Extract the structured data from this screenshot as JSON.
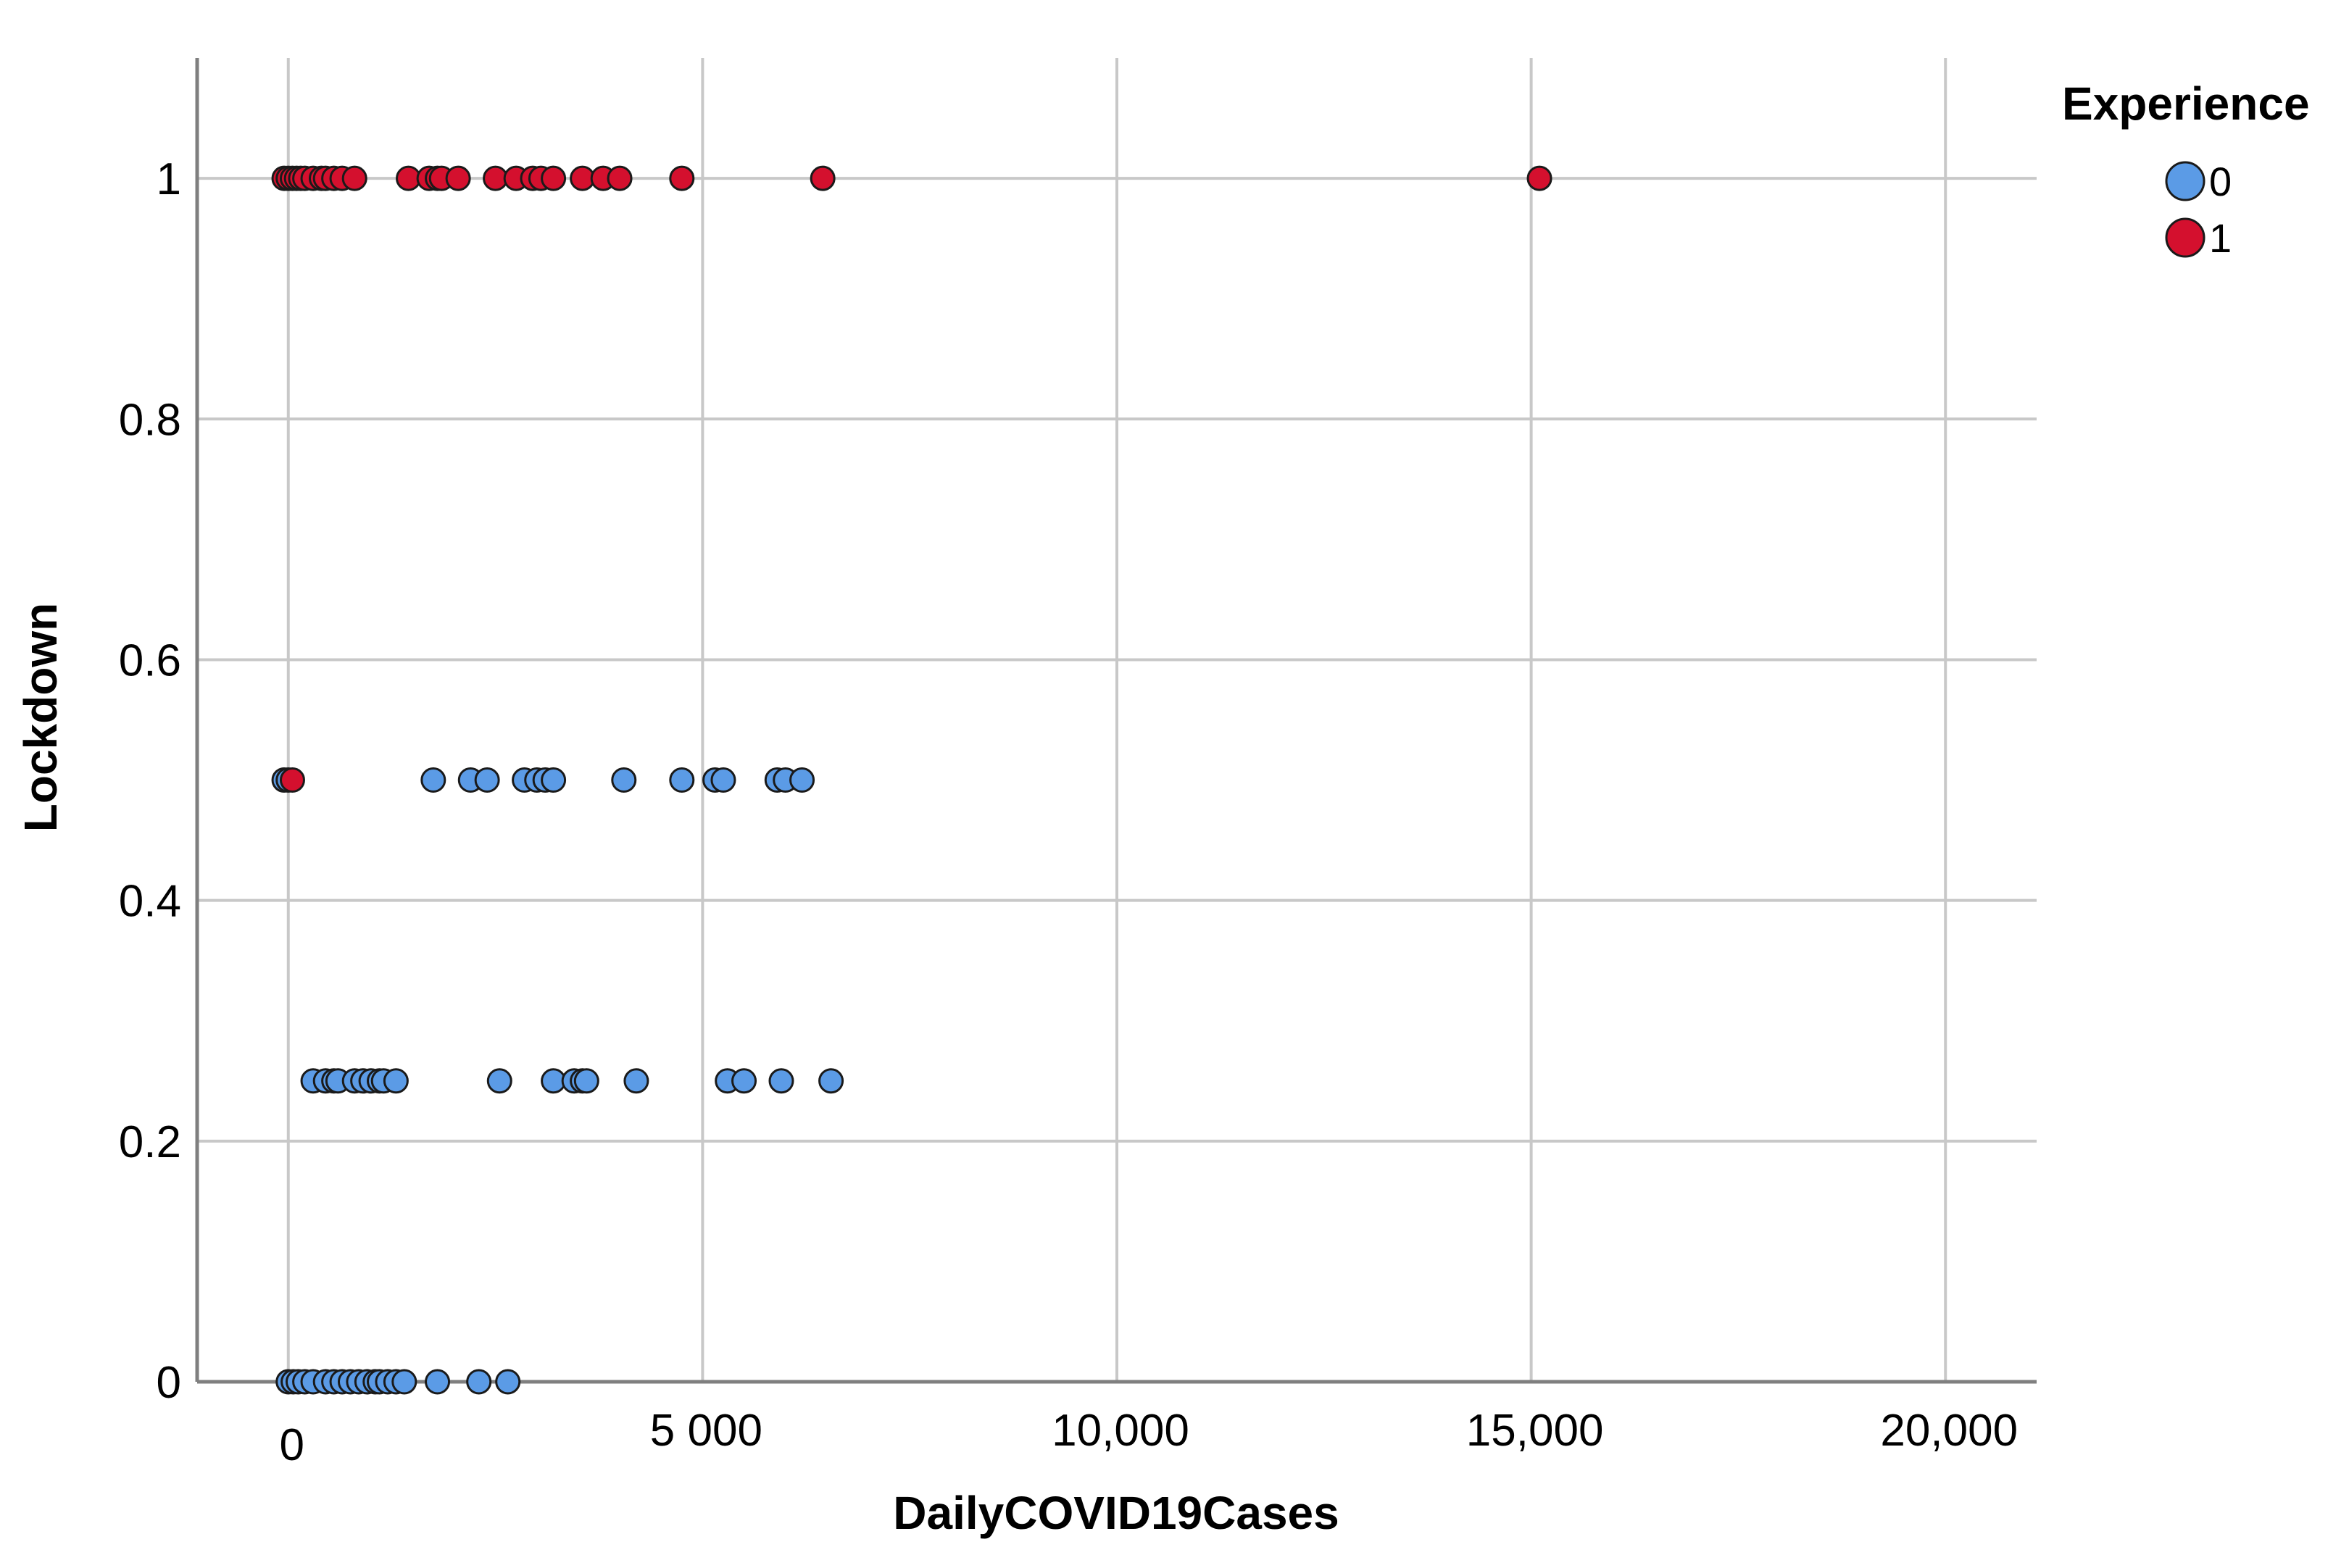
{
  "chart_data": {
    "type": "scatter",
    "title": "",
    "xlabel": "DailyCOVID19Cases",
    "ylabel": "Lockdown",
    "xlim": [
      -1100,
      21100
    ],
    "ylim": [
      0,
      1.1
    ],
    "x_ticks": [
      {
        "value": 0,
        "label": "0"
      },
      {
        "value": 5000,
        "label": "5 000"
      },
      {
        "value": 10000,
        "label": "10,000"
      },
      {
        "value": 15000,
        "label": "15,000"
      },
      {
        "value": 20000,
        "label": "20,000"
      }
    ],
    "y_ticks": [
      {
        "value": 0,
        "label": "0"
      },
      {
        "value": 0.2,
        "label": "0.2"
      },
      {
        "value": 0.4,
        "label": "0.4"
      },
      {
        "value": 0.6,
        "label": "0.6"
      },
      {
        "value": 0.8,
        "label": "0.8"
      },
      {
        "value": 1,
        "label": "1"
      }
    ],
    "grid": true,
    "legend": {
      "title": "Experience",
      "position": "top-right"
    },
    "series": [
      {
        "name": "0",
        "color": "#5b9be6",
        "points": [
          [
            0,
            0
          ],
          [
            60,
            0
          ],
          [
            120,
            0
          ],
          [
            200,
            0
          ],
          [
            300,
            0
          ],
          [
            450,
            0
          ],
          [
            550,
            0
          ],
          [
            650,
            0
          ],
          [
            750,
            0
          ],
          [
            850,
            0
          ],
          [
            950,
            0
          ],
          [
            1050,
            0
          ],
          [
            1100,
            0
          ],
          [
            1200,
            0
          ],
          [
            1300,
            0
          ],
          [
            1400,
            0
          ],
          [
            1800,
            0
          ],
          [
            2300,
            0
          ],
          [
            2650,
            0
          ],
          [
            300,
            0.25
          ],
          [
            450,
            0.25
          ],
          [
            550,
            0.25
          ],
          [
            600,
            0.25
          ],
          [
            800,
            0.25
          ],
          [
            900,
            0.25
          ],
          [
            1000,
            0.25
          ],
          [
            1100,
            0.25
          ],
          [
            1150,
            0.25
          ],
          [
            1300,
            0.25
          ],
          [
            2550,
            0.25
          ],
          [
            3200,
            0.25
          ],
          [
            3450,
            0.25
          ],
          [
            3550,
            0.25
          ],
          [
            3600,
            0.25
          ],
          [
            4200,
            0.25
          ],
          [
            5300,
            0.25
          ],
          [
            5500,
            0.25
          ],
          [
            5950,
            0.25
          ],
          [
            6550,
            0.25
          ],
          [
            -50,
            0.5
          ],
          [
            0,
            0.5
          ],
          [
            1750,
            0.5
          ],
          [
            2200,
            0.5
          ],
          [
            2400,
            0.5
          ],
          [
            2850,
            0.5
          ],
          [
            3000,
            0.5
          ],
          [
            3100,
            0.5
          ],
          [
            3200,
            0.5
          ],
          [
            4050,
            0.5
          ],
          [
            4750,
            0.5
          ],
          [
            5150,
            0.5
          ],
          [
            5250,
            0.5
          ],
          [
            5900,
            0.5
          ],
          [
            6000,
            0.5
          ],
          [
            6200,
            0.5
          ]
        ]
      },
      {
        "name": "1",
        "color": "#d4102e",
        "points": [
          [
            -50,
            1
          ],
          [
            0,
            1
          ],
          [
            50,
            1
          ],
          [
            100,
            1
          ],
          [
            150,
            1
          ],
          [
            200,
            1
          ],
          [
            300,
            1
          ],
          [
            400,
            1
          ],
          [
            450,
            1
          ],
          [
            550,
            1
          ],
          [
            650,
            1
          ],
          [
            800,
            1
          ],
          [
            1450,
            1
          ],
          [
            1700,
            1
          ],
          [
            1800,
            1
          ],
          [
            1850,
            1
          ],
          [
            2050,
            1
          ],
          [
            2500,
            1
          ],
          [
            2750,
            1
          ],
          [
            2950,
            1
          ],
          [
            3050,
            1
          ],
          [
            3200,
            1
          ],
          [
            3550,
            1
          ],
          [
            3800,
            1
          ],
          [
            4000,
            1
          ],
          [
            4750,
            1
          ],
          [
            6450,
            1
          ],
          [
            15100,
            1
          ],
          [
            50,
            0.5
          ]
        ]
      }
    ]
  }
}
